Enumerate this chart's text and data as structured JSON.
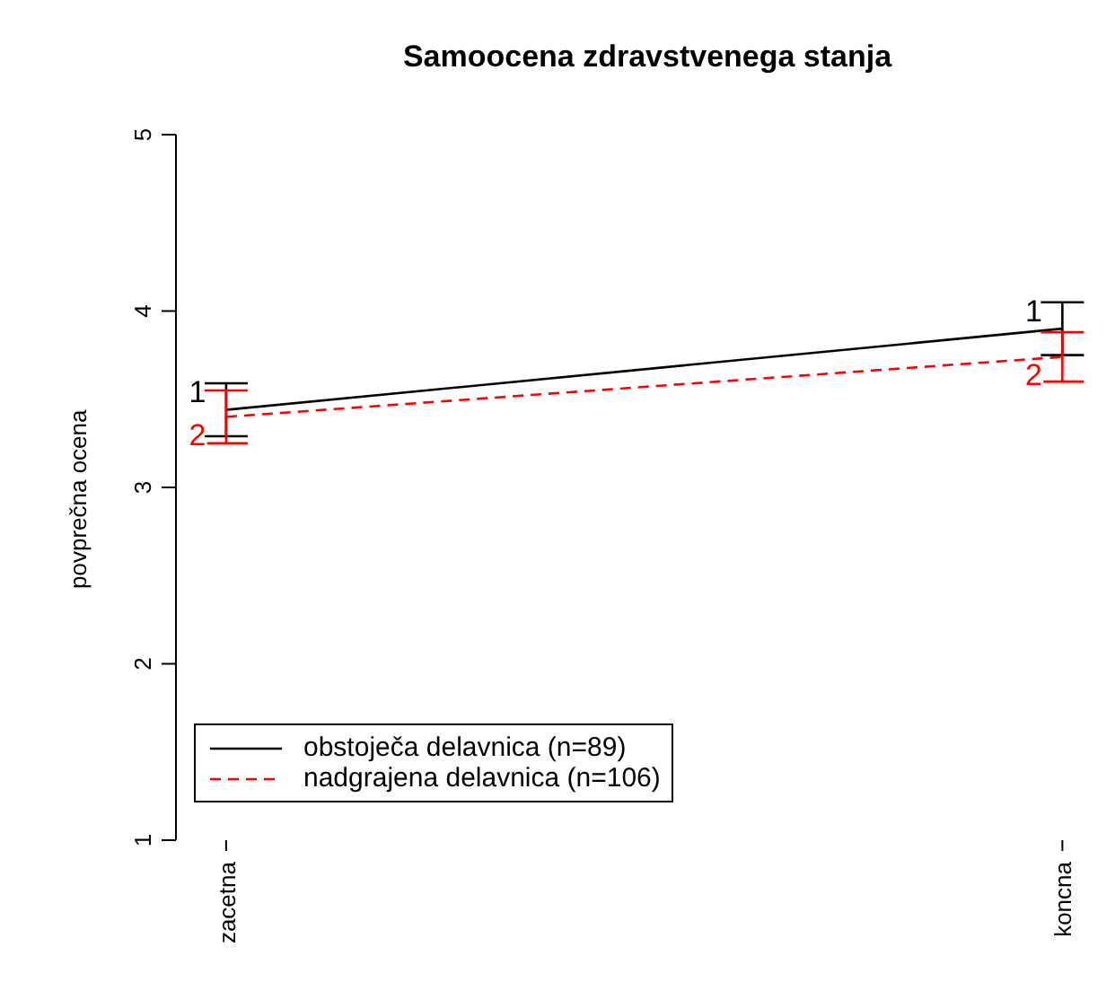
{
  "chart_data": {
    "type": "line",
    "title": "Samoocena zdravstvenega stanja",
    "ylabel": "povprečna ocena",
    "categories": [
      "zacetna",
      "koncna"
    ],
    "series": [
      {
        "name": "obstoječa delavnica (n=89)",
        "color": "#000000",
        "values": [
          3.44,
          3.9
        ],
        "errors": [
          0.15,
          0.15
        ],
        "line_style": "solid"
      },
      {
        "name": "nadgrajena delavnica (n=106)",
        "color": "#ff0000",
        "values": [
          3.4,
          3.74
        ],
        "errors": [
          0.15,
          0.14
        ],
        "line_style": "dashed"
      }
    ],
    "annotations": [
      {
        "text": "1",
        "x": "zacetna",
        "y": 3.44
      },
      {
        "text": "2",
        "x": "zacetna",
        "y": 3.4
      },
      {
        "text": "1",
        "x": "koncna",
        "y": 3.9
      },
      {
        "text": "2",
        "x": "koncna",
        "y": 3.74
      }
    ],
    "ylim": [
      1,
      5
    ],
    "yticks": [
      1,
      2,
      3,
      4,
      5
    ],
    "grid": false,
    "legend": "bottom left",
    "marker": "none"
  }
}
